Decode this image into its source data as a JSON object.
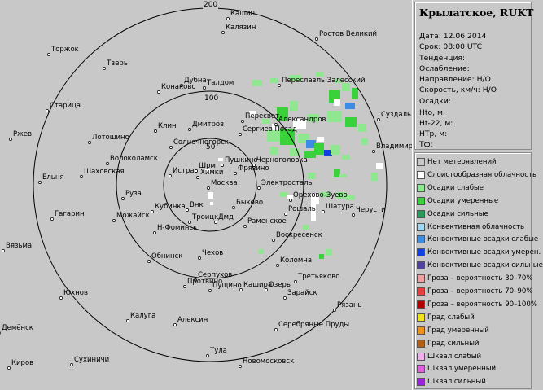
{
  "map": {
    "ring_labels": [
      "200",
      "100",
      "50"
    ],
    "cities": [
      "Кашин",
      "Калязин",
      "Ростов Великий",
      "Торжок",
      "Тверь",
      "Дубна",
      "Талдом",
      "Конаково",
      "Переславль Залесский",
      "Суздаль",
      "Старица",
      "Пересвет",
      "Александров",
      "Сергиев Посад",
      "Клин",
      "Дмитров",
      "Ржев",
      "Лотошино",
      "Солнечногорск",
      "Владимир",
      "Волоколамск",
      "Пушкино",
      "Черноголовка",
      "Шаховская",
      "Шрм",
      "Химки",
      "Фрязино",
      "Ельня",
      "Истра",
      "Москва",
      "Электросталь",
      "Руза",
      "Орехово-Зуево",
      "Кубинка",
      "Внк",
      "Быково",
      "Гагарин",
      "Можайск",
      "Троицк",
      "Дмд",
      "Раменское",
      "Рошаль",
      "Шатура",
      "Черусти",
      "Н-Фоминск",
      "Вязьма",
      "Воскресенск",
      "Обнинск",
      "Чехов",
      "Коломна",
      "Серпухов",
      "Протвино",
      "Пущино",
      "Кашира",
      "Озеры",
      "Зарайск",
      "Третьяково",
      "Юхнов",
      "Рязань",
      "Калуга",
      "Алексин",
      "Серебряные Пруды",
      "Киров",
      "Сухиничи",
      "Тула",
      "Новомосковск",
      "Демёнск"
    ]
  },
  "panel": {
    "station": "Крылатское, RUKT",
    "info": [
      "Дата: 12.06.2014",
      "Срок: 08:00 UTC",
      "Тенденция:",
      "Ослабление:",
      "Направление: Н/О",
      "Скорость, км/ч: Н/О",
      "Осадки:",
      "Hto, м:",
      "Ht-22, м:",
      "HTp, м:",
      "Тф:"
    ],
    "legend": [
      {
        "label": "Нет метеоявлений",
        "color": "#c8c8c8"
      },
      {
        "label": "Слоистообразная облачность",
        "color": "#ffffff"
      },
      {
        "label": "Осадки слабые",
        "color": "#8fe88f"
      },
      {
        "label": "Осадки умеренные",
        "color": "#3ad23a"
      },
      {
        "label": "Осадки сильные",
        "color": "#2a9a5a"
      },
      {
        "label": "Конвективная облачность",
        "color": "#9fd8f0"
      },
      {
        "label": "Конвективные осадки слабые",
        "color": "#3c8ce6"
      },
      {
        "label": "Конвективные осадки умерен.",
        "color": "#1040e0"
      },
      {
        "label": "Конвективные осадки сильные",
        "color": "#5040a0"
      },
      {
        "label": "Гроза – вероятность 30–70%",
        "color": "#f0a0a0"
      },
      {
        "label": "Гроза – вероятность 70–90%",
        "color": "#e84040"
      },
      {
        "label": "Гроза – вероятность 90–100%",
        "color": "#b00000"
      },
      {
        "label": "Град слабый",
        "color": "#f0e020"
      },
      {
        "label": "Град умеренный",
        "color": "#f09020"
      },
      {
        "label": "Град сильный",
        "color": "#b06010"
      },
      {
        "label": "Шквал слабый",
        "color": "#f0b0f0"
      },
      {
        "label": "Шквал умеренный",
        "color": "#e060e0"
      },
      {
        "label": "Шквал сильный",
        "color": "#a020e0"
      }
    ]
  }
}
